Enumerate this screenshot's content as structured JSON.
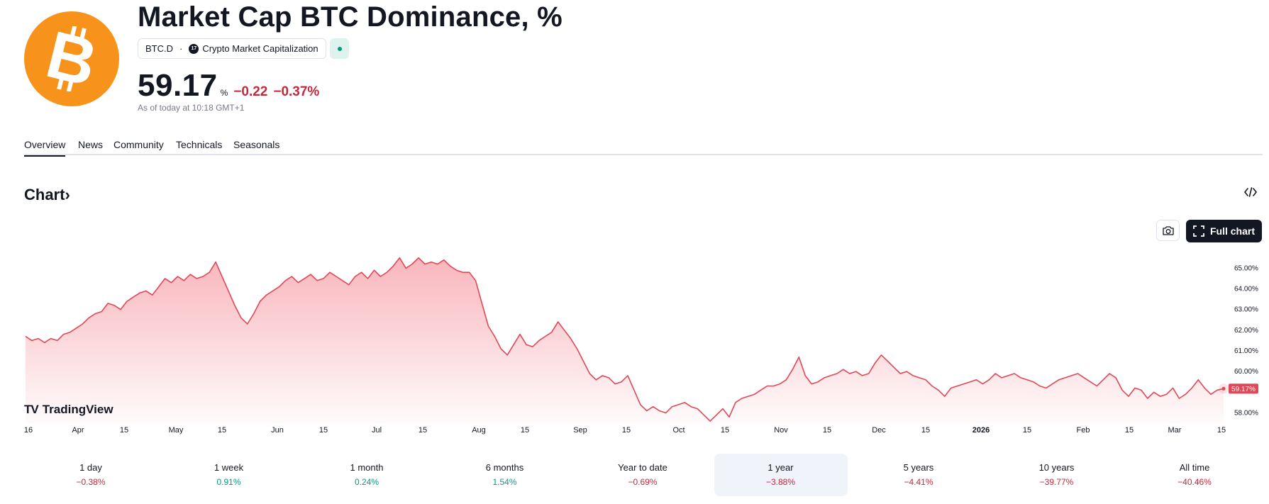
{
  "header": {
    "title": "Market Cap BTC Dominance, %",
    "symbol": "BTC.D",
    "separator": "·",
    "source_icon": "tradingview-icon",
    "source": "Crypto Market Capitalization",
    "status_icon": "market-status-dot-icon",
    "price": "59.17",
    "price_unit": "%",
    "change_abs": "−0.22",
    "change_pct": "−0.37%",
    "as_of": "As of today at 10:18 GMT+1",
    "logo_icon": "bitcoin-logo-icon"
  },
  "tabs": [
    "Overview",
    "News",
    "Community",
    "Technicals",
    "Seasonals"
  ],
  "chart_section": {
    "heading": "Chart",
    "heading_arrow": "›",
    "embed_icon": "embed-code-icon",
    "snapshot_icon": "camera-icon",
    "full_chart_label": "Full chart",
    "full_chart_icon": "fullscreen-icon",
    "brand_label": "TradingView",
    "brand_mark": "TV"
  },
  "chart_data": {
    "type": "area",
    "line_color": "#e04857",
    "fill_color": "#f7a9b0",
    "y_tick_labels": [
      "65.00%",
      "64.00%",
      "63.00%",
      "62.00%",
      "61.00%",
      "60.00%",
      "58.00%"
    ],
    "y_ticks": [
      65,
      64,
      63,
      62,
      61,
      60,
      58
    ],
    "ylim": [
      57.5,
      65.8
    ],
    "x_tick_labels": [
      "16",
      "Apr",
      "15",
      "May",
      "15",
      "Jun",
      "15",
      "Jul",
      "15",
      "Aug",
      "15",
      "Sep",
      "15",
      "Oct",
      "15",
      "Nov",
      "15",
      "Dec",
      "15",
      "2026",
      "15",
      "Feb",
      "15",
      "Mar",
      "15"
    ],
    "bold_tick": "2026",
    "last_value_label": "59.17%",
    "last_value": 59.17,
    "series": [
      {
        "values": [
          61.7,
          61.5,
          61.6,
          61.4,
          61.6,
          61.5,
          61.8,
          61.9,
          62.1,
          62.3,
          62.6,
          62.8,
          62.9,
          63.3,
          63.2,
          63.0,
          63.4,
          63.6,
          63.8,
          63.9,
          63.7,
          64.1,
          64.5,
          64.3,
          64.6,
          64.4,
          64.7,
          64.5,
          64.6,
          64.8,
          65.3,
          64.6,
          63.9,
          63.2,
          62.6,
          62.3,
          62.8,
          63.4,
          63.7,
          63.9,
          64.1,
          64.4,
          64.6,
          64.3,
          64.5,
          64.7,
          64.4,
          64.5,
          64.8,
          64.6,
          64.4,
          64.2,
          64.6,
          64.8,
          64.5,
          64.9,
          64.6,
          64.8,
          65.1,
          65.5,
          65.0,
          65.2,
          65.5,
          65.2,
          65.3,
          65.2,
          65.4,
          65.1,
          64.9,
          64.8,
          64.8,
          64.4,
          63.3,
          62.2,
          61.7,
          61.1,
          60.8,
          61.3,
          61.8,
          61.3,
          61.2,
          61.5,
          61.7,
          61.9,
          62.4,
          62.0,
          61.6,
          61.1,
          60.5,
          59.9,
          59.6,
          59.8,
          59.7,
          59.4,
          59.5,
          59.8,
          59.1,
          58.4,
          58.1,
          58.3,
          58.1,
          58.0,
          58.3,
          58.4,
          58.5,
          58.3,
          58.2,
          57.9,
          57.6,
          57.9,
          58.2,
          57.8,
          58.5,
          58.7,
          58.8,
          58.9,
          59.1,
          59.3,
          59.3,
          59.4,
          59.6,
          60.1,
          60.7,
          59.8,
          59.4,
          59.5,
          59.7,
          59.8,
          59.9,
          60.1,
          59.9,
          60.0,
          59.8,
          59.9,
          60.4,
          60.8,
          60.5,
          60.2,
          59.9,
          60.0,
          59.8,
          59.7,
          59.6,
          59.3,
          59.1,
          58.8,
          59.2,
          59.3,
          59.4,
          59.5,
          59.6,
          59.4,
          59.6,
          59.9,
          59.7,
          59.8,
          59.9,
          59.7,
          59.6,
          59.5,
          59.3,
          59.2,
          59.4,
          59.6,
          59.7,
          59.8,
          59.9,
          59.7,
          59.5,
          59.3,
          59.6,
          59.9,
          59.7,
          59.1,
          58.8,
          59.2,
          59.1,
          58.7,
          59.0,
          58.8,
          58.9,
          59.2,
          58.7,
          58.9,
          59.2,
          59.6,
          59.2,
          58.9,
          59.1,
          59.17
        ]
      }
    ]
  },
  "periods": [
    {
      "label": "1 day",
      "value": "−0.38%",
      "trend": "neg"
    },
    {
      "label": "1 week",
      "value": "0.91%",
      "trend": "pos"
    },
    {
      "label": "1 month",
      "value": "0.24%",
      "trend": "pos"
    },
    {
      "label": "6 months",
      "value": "1.54%",
      "trend": "pos"
    },
    {
      "label": "Year to date",
      "value": "−0.69%",
      "trend": "neg"
    },
    {
      "label": "1 year",
      "value": "−3.88%",
      "trend": "neg",
      "selected": true
    },
    {
      "label": "5 years",
      "value": "−4.41%",
      "trend": "neg"
    },
    {
      "label": "10 years",
      "value": "−39.77%",
      "trend": "neg"
    },
    {
      "label": "All time",
      "value": "−40.46%",
      "trend": "neg"
    }
  ]
}
